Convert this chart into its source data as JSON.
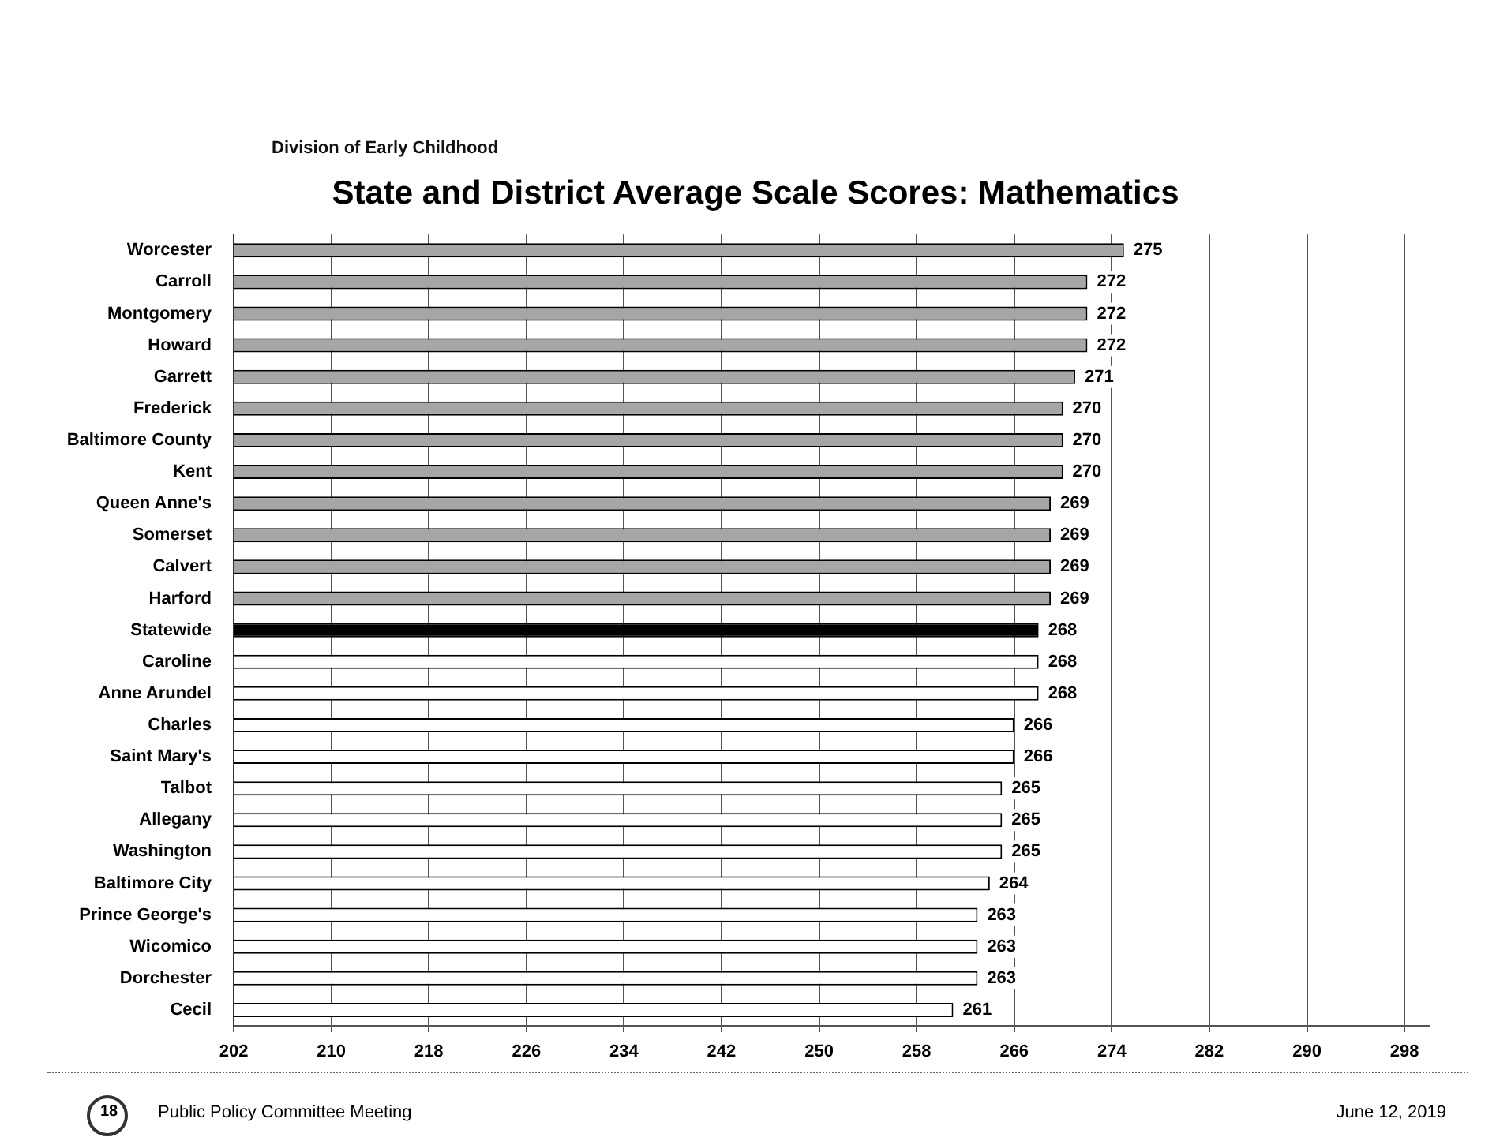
{
  "chart_data": {
    "type": "bar",
    "orientation": "horizontal",
    "title": "State and District Average Scale Scores: Mathematics",
    "subtitle": "Division of Early Childhood",
    "annotations": [
      "Public Policy Committee Meeting",
      "June 12, 2019",
      "18"
    ],
    "categories": [
      "Worcester",
      "Carroll",
      "Montgomery",
      "Howard",
      "Garrett",
      "Frederick",
      "Baltimore County",
      "Kent",
      "Queen Anne's",
      "Somerset",
      "Calvert",
      "Harford",
      "Statewide",
      "Caroline",
      "Anne Arundel",
      "Charles",
      "Saint Mary's",
      "Talbot",
      "Allegany",
      "Washington",
      "Baltimore City",
      "Prince George's",
      "Wicomico",
      "Dorchester",
      "Cecil"
    ],
    "values": [
      275,
      272,
      272,
      272,
      271,
      270,
      270,
      270,
      269,
      269,
      269,
      269,
      268,
      268,
      268,
      266,
      266,
      265,
      265,
      265,
      264,
      263,
      263,
      263,
      261
    ],
    "colors": [
      "#a6a6a6",
      "#a6a6a6",
      "#a6a6a6",
      "#a6a6a6",
      "#a6a6a6",
      "#a6a6a6",
      "#a6a6a6",
      "#a6a6a6",
      "#a6a6a6",
      "#a6a6a6",
      "#a6a6a6",
      "#a6a6a6",
      "#000000",
      "#ffffff",
      "#ffffff",
      "#ffffff",
      "#ffffff",
      "#ffffff",
      "#ffffff",
      "#ffffff",
      "#ffffff",
      "#ffffff",
      "#ffffff",
      "#ffffff",
      "#ffffff"
    ],
    "xlim": [
      202,
      300
    ],
    "xticks": [
      202,
      210,
      218,
      226,
      234,
      242,
      250,
      258,
      266,
      274,
      282,
      290,
      298
    ],
    "grid": "x",
    "data_labels": true
  }
}
